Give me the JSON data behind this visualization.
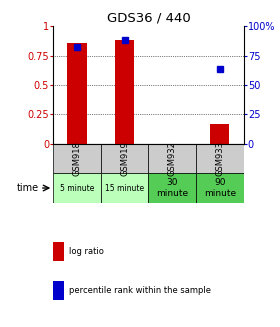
{
  "title": "GDS36 / 440",
  "samples": [
    "GSM918",
    "GSM919",
    "GSM932",
    "GSM933"
  ],
  "time_labels": [
    "5 minute",
    "15 minute",
    "30\nminute",
    "90\nminute"
  ],
  "time_colors": [
    "#bbffbb",
    "#bbffbb",
    "#55cc55",
    "#55cc55"
  ],
  "log_ratio": [
    0.86,
    0.88,
    0.0,
    0.17
  ],
  "percentile_rank": [
    0.82,
    0.88,
    null,
    0.64
  ],
  "bar_color": "#cc0000",
  "dot_color": "#0000cc",
  "ylim": [
    0,
    1
  ],
  "yticks_left": [
    0,
    0.25,
    0.5,
    0.75,
    1.0
  ],
  "ytick_labels_left": [
    "0",
    "0.25",
    "0.5",
    "0.75",
    "1"
  ],
  "yticks_right": [
    0,
    25,
    50,
    75,
    100
  ],
  "ytick_labels_right": [
    "0",
    "25",
    "50",
    "75",
    "100%"
  ],
  "left_axis_color": "#cc0000",
  "right_axis_color": "#0000cc",
  "legend_log_ratio": "log ratio",
  "legend_percentile": "percentile rank within the sample",
  "time_label": "time",
  "sample_cell_color": "#cccccc",
  "bar_width": 0.4
}
